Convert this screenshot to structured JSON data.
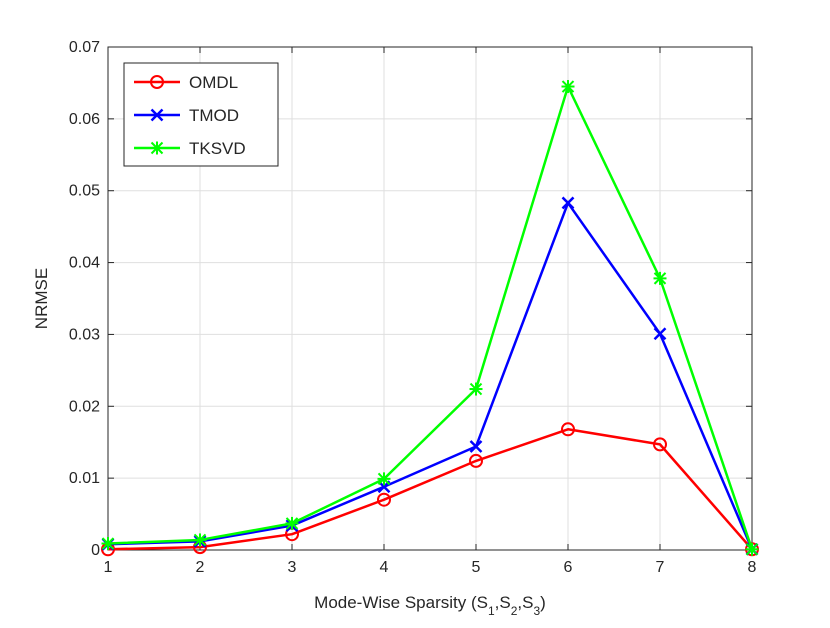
{
  "chart_data": {
    "type": "line",
    "title": "",
    "xlabel": "Mode-Wise Sparsity (S",
    "xlabel_parts": [
      "Mode-Wise Sparsity (S",
      "1",
      ",S",
      "2",
      ",S",
      "3",
      ")"
    ],
    "ylabel": "NRMSE",
    "x": [
      1,
      2,
      3,
      4,
      5,
      6,
      7,
      8
    ],
    "xlim": [
      1,
      8
    ],
    "ylim": [
      0,
      0.07
    ],
    "xticks": [
      "1",
      "2",
      "3",
      "4",
      "5",
      "6",
      "7",
      "8"
    ],
    "yticks": [
      "0",
      "0.01",
      "0.02",
      "0.03",
      "0.04",
      "0.05",
      "0.06",
      "0.07"
    ],
    "grid": true,
    "legend_position": "top-left",
    "series": [
      {
        "name": "OMDL",
        "color": "#ff0000",
        "marker": "circle",
        "values": [
          0.0001,
          0.0004,
          0.0022,
          0.007,
          0.0124,
          0.0168,
          0.0147,
          0.0001
        ]
      },
      {
        "name": "TMOD",
        "color": "#0000ff",
        "marker": "x",
        "values": [
          0.0008,
          0.0012,
          0.0034,
          0.0088,
          0.0144,
          0.0483,
          0.0301,
          0.0001
        ]
      },
      {
        "name": "TKSVD",
        "color": "#00ff00",
        "marker": "asterisk",
        "values": [
          0.0009,
          0.0014,
          0.0037,
          0.0099,
          0.0224,
          0.0645,
          0.0378,
          0.0001
        ]
      }
    ]
  }
}
